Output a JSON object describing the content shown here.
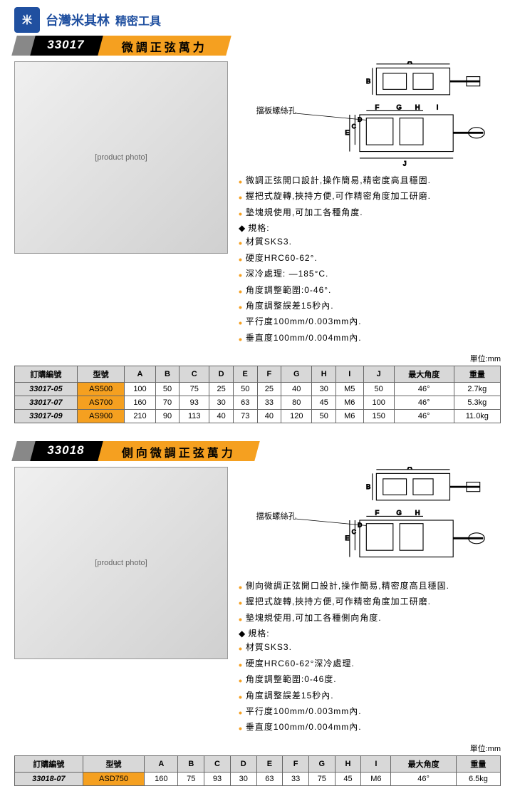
{
  "brand": {
    "name": "台灣米其林",
    "sub": "精密工具"
  },
  "sections": [
    {
      "code": "33017",
      "title": "微調正弦萬力",
      "diagram_label": "擋板螺絲孔",
      "dims_top": [
        "A",
        "B"
      ],
      "dims_side": [
        "C",
        "D",
        "E",
        "F",
        "G",
        "H",
        "I",
        "J"
      ],
      "bullets": [
        "微調正弦開口設計,操作簡易,精密度高且穩固.",
        "握把式旋轉,挾持方便,可作精密角度加工研磨.",
        "墊塊規使用,可加工各種角度."
      ],
      "spec_label": "規格:",
      "specs": [
        "材質SKS3.",
        "硬度HRC60-62°.",
        "深冷處理:  —185°C.",
        "角度調整範圍:0-46°.",
        "角度調整誤差15秒內.",
        "平行度100mm/0.003mm內.",
        "垂直度100mm/0.004mm內."
      ],
      "unit": "單位:mm",
      "columns": [
        "訂購編號",
        "型號",
        "A",
        "B",
        "C",
        "D",
        "E",
        "F",
        "G",
        "H",
        "I",
        "J",
        "最大角度",
        "重量"
      ],
      "rows": [
        [
          "33017-05",
          "AS500",
          "100",
          "50",
          "75",
          "25",
          "50",
          "25",
          "40",
          "30",
          "M5",
          "50",
          "46°",
          "2.7kg"
        ],
        [
          "33017-07",
          "AS700",
          "160",
          "70",
          "93",
          "30",
          "63",
          "33",
          "80",
          "45",
          "M6",
          "100",
          "46°",
          "5.3kg"
        ],
        [
          "33017-09",
          "AS900",
          "210",
          "90",
          "113",
          "40",
          "73",
          "40",
          "120",
          "50",
          "M6",
          "150",
          "46°",
          "11.0kg"
        ]
      ]
    },
    {
      "code": "33018",
      "title": "側向微調正弦萬力",
      "diagram_label": "擋板螺絲孔",
      "dims_top": [
        "A",
        "B"
      ],
      "dims_side": [
        "C",
        "D",
        "E",
        "F",
        "G",
        "H"
      ],
      "bullets": [
        "側向微調正弦開口設計,操作簡易,精密度高且穩固.",
        "握把式旋轉,挾持方便,可作精密角度加工研磨.",
        "墊塊規使用,可加工各種側向角度."
      ],
      "spec_label": "規格:",
      "specs": [
        "材質SKS3.",
        "硬度HRC60-62°深冷處理.",
        "角度調整範圍:0-46度.",
        "角度調整誤差15秒內.",
        "平行度100mm/0.003mm內.",
        "垂直度100mm/0.004mm內."
      ],
      "unit": "單位:mm",
      "columns": [
        "訂購編號",
        "型號",
        "A",
        "B",
        "C",
        "D",
        "E",
        "F",
        "G",
        "H",
        "I",
        "最大角度",
        "重量"
      ],
      "rows": [
        [
          "33018-07",
          "ASD750",
          "160",
          "75",
          "93",
          "30",
          "63",
          "33",
          "75",
          "45",
          "M6",
          "46°",
          "6.5kg"
        ]
      ]
    }
  ]
}
